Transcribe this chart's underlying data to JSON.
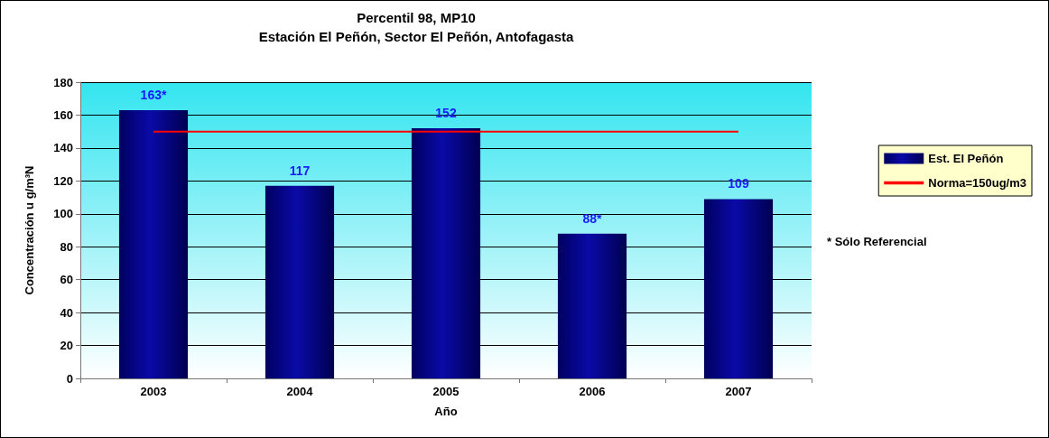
{
  "chart_data": {
    "type": "bar",
    "title": "Percentil 98, MP10",
    "subtitle": "Estación El Peñón, Sector El Peñón, Antofagasta",
    "xlabel": "Año",
    "ylabel": "Concentración u g/m³N",
    "categories": [
      "2003",
      "2004",
      "2005",
      "2006",
      "2007"
    ],
    "series": [
      {
        "name": "Est. El Peñón",
        "color": "#0a0aa8",
        "values": [
          163,
          117,
          152,
          88,
          109
        ],
        "value_labels": [
          "163*",
          "117",
          "152",
          "88*",
          "109"
        ]
      },
      {
        "name": "Norma=150ug/m3",
        "type": "line",
        "color": "#ff0000",
        "values": [
          150,
          150,
          150,
          150,
          150
        ]
      }
    ],
    "ylim": [
      0,
      180
    ],
    "yticks": [
      0,
      20,
      40,
      60,
      80,
      100,
      120,
      140,
      160,
      180
    ],
    "grid": "y",
    "legend": "right",
    "marker": "none",
    "annotations": [
      "* Sólo Referencial"
    ]
  }
}
